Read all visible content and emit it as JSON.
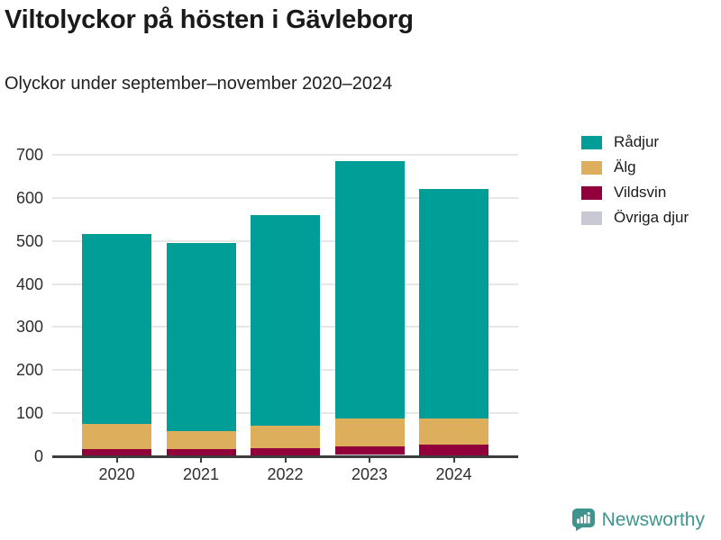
{
  "title": "Viltolyckor på hösten i Gävleborg",
  "subtitle": "Olyckor under september–november 2020–2024",
  "legend": {
    "position": "top-right",
    "items": [
      {
        "label": "Rådjur",
        "color": "#019e98"
      },
      {
        "label": "Älg",
        "color": "#ddae5b"
      },
      {
        "label": "Vildsvin",
        "color": "#91003b"
      },
      {
        "label": "Övriga djur",
        "color": "#c9c9d4"
      }
    ]
  },
  "chart_data": {
    "type": "bar",
    "stacked": true,
    "title": "Viltolyckor på hösten i Gävleborg",
    "subtitle": "Olyckor under september–november 2020–2024",
    "categories": [
      "2020",
      "2021",
      "2022",
      "2023",
      "2024"
    ],
    "series": [
      {
        "name": "Rådjur",
        "color": "#019e98",
        "values": [
          440,
          437,
          489,
          598,
          533
        ]
      },
      {
        "name": "Älg",
        "color": "#ddae5b",
        "values": [
          60,
          41,
          53,
          65,
          59
        ]
      },
      {
        "name": "Vildsvin",
        "color": "#91003b",
        "values": [
          13,
          15,
          16,
          18,
          26
        ]
      },
      {
        "name": "Övriga djur",
        "color": "#c9c9d4",
        "values": [
          3,
          2,
          2,
          5,
          2
        ]
      }
    ],
    "stack_order_bottom_to_top": [
      "Övriga djur",
      "Vildsvin",
      "Älg",
      "Rådjur"
    ],
    "totals": [
      516,
      495,
      560,
      686,
      620
    ],
    "xlabel": "",
    "ylabel": "",
    "ylim": [
      0,
      700
    ],
    "yticks": [
      0,
      100,
      200,
      300,
      400,
      500,
      600,
      700
    ],
    "grid": true,
    "gridline_color": "#e7e7e7",
    "axis_color": "#3d3d3d",
    "legend_position": "top-right"
  },
  "footer": {
    "brand": "Newsworthy",
    "brand_color": "#3f958e",
    "logo_icon": "newsworthy-speech-bubble-bar-chart-icon"
  }
}
